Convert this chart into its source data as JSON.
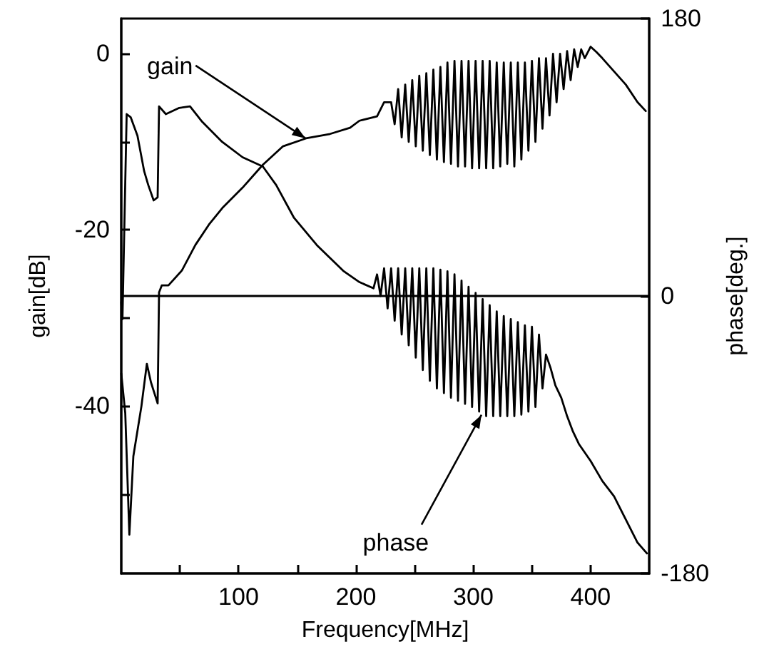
{
  "chart_data": {
    "type": "line",
    "xlabel": "Frequency[MHz]",
    "ylabel": "gain[dB]",
    "y2label": "phase[deg.]",
    "xlim": [
      0,
      450
    ],
    "xticks": [
      {
        "value": 50,
        "label": null
      },
      100,
      {
        "value": 150,
        "label": null
      },
      200,
      {
        "value": 250,
        "label": null
      },
      300,
      {
        "value": 350,
        "label": null
      },
      400
    ],
    "ylim": [
      -59,
      4
    ],
    "yticks": [
      {
        "value": -50,
        "label": null
      },
      -40,
      {
        "value": -30,
        "label": null
      },
      -20,
      {
        "value": -10,
        "label": null
      },
      0
    ],
    "y2lim": [
      -180,
      180
    ],
    "y2ticks": [
      -180,
      0,
      180
    ],
    "grid": false,
    "legend": false,
    "marker": "none",
    "line_style": "solid",
    "ref_lines": [
      {
        "axis": "y2",
        "value": 0,
        "color": "#000000"
      }
    ],
    "annotations": [
      {
        "text": "gain",
        "x": 157,
        "y": -9.6
      },
      {
        "text": "phase",
        "x": 307,
        "y": -41
      }
    ],
    "series": [
      {
        "color": "#000000",
        "x": [
          0,
          3.4,
          6.9,
          10.3,
          17.2,
          21.8,
          25.3,
          31,
          32.2,
          34.5,
          40.2,
          51.7,
          63.2,
          74.7,
          86.2,
          103.4,
          120.7,
          137.9,
          157.5,
          178,
          195,
          203,
          218,
          224,
          230,
          233,
          236,
          239,
          242,
          245,
          248,
          251,
          254,
          257,
          260,
          263,
          266,
          269,
          272,
          275,
          278,
          281,
          284,
          287,
          290,
          293,
          296,
          299,
          302,
          305,
          308,
          311,
          314,
          317,
          320,
          323,
          326,
          329,
          332,
          335,
          338,
          341,
          344,
          347,
          350,
          353,
          356,
          359,
          362,
          365,
          368,
          371,
          374,
          377,
          380,
          383,
          386,
          389,
          392,
          395,
          400,
          405,
          410,
          420,
          430,
          440,
          447
        ],
        "values": [
          -36.3,
          -40.8,
          -54.6,
          -45.7,
          -40,
          -35.2,
          -37.3,
          -39.7,
          -27.1,
          -26.3,
          -26.3,
          -24.6,
          -21.7,
          -19.4,
          -17.5,
          -15.2,
          -12.6,
          -10.5,
          -9.6,
          -9.1,
          -8.4,
          -7.6,
          -7.1,
          -5.5,
          -5.5,
          -8,
          -4,
          -9.5,
          -3.5,
          -10,
          -3,
          -10.5,
          -2.5,
          -11,
          -2.2,
          -11.5,
          -1.8,
          -12,
          -1.5,
          -12.3,
          -1,
          -12.5,
          -0.8,
          -12.8,
          -0.8,
          -12.8,
          -0.8,
          -13,
          -0.8,
          -13,
          -0.8,
          -13,
          -0.8,
          -13,
          -1,
          -12.8,
          -1,
          -12.5,
          -1,
          -12.8,
          -1,
          -12,
          -1,
          -11,
          -0.8,
          -10,
          -0.5,
          -8.5,
          -0.5,
          -7,
          0,
          -5.5,
          0,
          -4,
          0.3,
          -3,
          0.5,
          -1.5,
          0.5,
          -0.5,
          0.8,
          0.2,
          -0.5,
          -2,
          -3.5,
          -5.5,
          -6.5
        ]
      },
      {
        "color": "#000000",
        "axis": "y2",
        "x": [
          0,
          1,
          4.6,
          8,
          13.8,
          19.5,
          23,
          27.6,
          31,
          32.2,
          38,
          49.4,
          58.6,
          69,
          86,
          103.4,
          120.7,
          132,
          147,
          166.7,
          189.7,
          203,
          215,
          218,
          221,
          224,
          227,
          230,
          233,
          236,
          239,
          242,
          245,
          248,
          251,
          254,
          257,
          260,
          263,
          266,
          269,
          272,
          275,
          278,
          281,
          284,
          287,
          290,
          293,
          296,
          299,
          302,
          305,
          308,
          311,
          314,
          317,
          320,
          323,
          326,
          329,
          332,
          335,
          338,
          341,
          344,
          347,
          350,
          353,
          356,
          359,
          362,
          366,
          370,
          375,
          380,
          385,
          390,
          400,
          410,
          420,
          430,
          440,
          448
        ],
        "values": [
          -4,
          -15,
          118,
          116,
          104,
          81,
          72,
          62,
          64,
          123,
          118,
          122,
          123,
          113,
          100,
          90,
          84,
          72,
          51,
          33,
          16,
          9,
          5,
          14,
          0,
          18,
          -8,
          18,
          -16,
          18,
          -25,
          18,
          -32,
          18,
          -40,
          18,
          -48,
          18,
          -55,
          18,
          -60,
          17,
          -63,
          16,
          -66,
          14,
          -68,
          10,
          -70,
          6,
          -72,
          2,
          -75,
          -2,
          -78,
          -6,
          -78,
          -10,
          -78,
          -13,
          -78,
          -15,
          -78,
          -17,
          -77,
          -19,
          -75,
          -20,
          -72,
          -25,
          -60,
          -38,
          -47,
          -58,
          -66,
          -78,
          -88,
          -96,
          -107,
          -120,
          -130,
          -145,
          -160,
          -167
        ]
      }
    ]
  }
}
